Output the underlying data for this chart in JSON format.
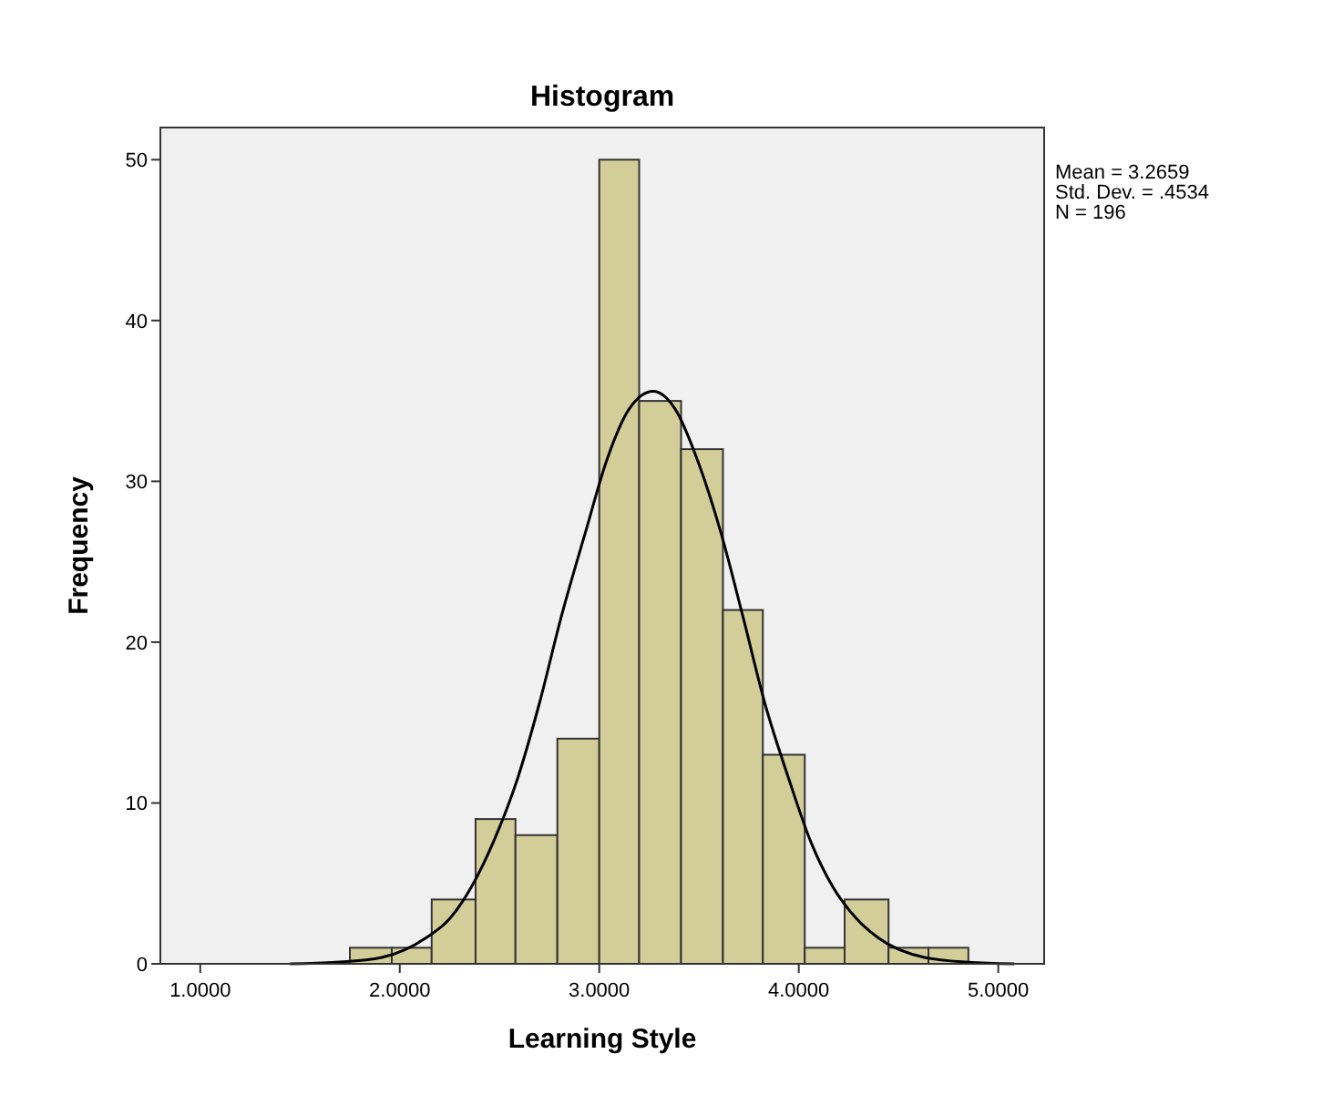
{
  "chart_data": {
    "type": "histogram",
    "title": "Histogram",
    "xlabel": "Learning Style",
    "ylabel": "Frequency",
    "annotations": [
      "Mean = 3.2659",
      "Std. Dev. = .4534",
      "N = 196"
    ],
    "bins": [
      1.75,
      1.96,
      2.16,
      2.38,
      2.58,
      2.79,
      3.0,
      3.2,
      3.41,
      3.62,
      3.82,
      4.03,
      4.23,
      4.45,
      4.65,
      4.85
    ],
    "series": [
      {
        "color": "#d3ce99",
        "values": [
          1,
          1,
          4,
          9,
          8,
          14,
          50,
          35,
          32,
          22,
          13,
          1,
          4,
          1,
          1
        ]
      },
      {
        "type": "line",
        "color": "#000000",
        "x": [
          1.45,
          1.68,
          1.91,
          2.13,
          2.25,
          2.36,
          2.47,
          2.59,
          2.7,
          2.81,
          2.93,
          3.04,
          3.15,
          3.27,
          3.38,
          3.49,
          3.61,
          3.72,
          3.83,
          3.95,
          4.06,
          4.17,
          4.29,
          4.4,
          4.63,
          4.85,
          5.08
        ],
        "values": [
          0,
          0.1,
          0.4,
          1.6,
          2.8,
          4.8,
          7.6,
          11.5,
          16.2,
          21.6,
          26.8,
          31.4,
          34.5,
          35.6,
          34.5,
          31.4,
          26.8,
          21.6,
          16.2,
          11.5,
          7.6,
          4.8,
          2.8,
          1.6,
          0.4,
          0.1,
          0
        ]
      }
    ],
    "xlim": [
      0.8,
      5.23
    ],
    "ylim": [
      0,
      52
    ],
    "xticks": [
      {
        "value": 1,
        "label": "1.0000"
      },
      {
        "value": 2,
        "label": "2.0000"
      },
      {
        "value": 3,
        "label": "3.0000"
      },
      {
        "value": 4,
        "label": "4.0000"
      },
      {
        "value": 5,
        "label": "5.0000"
      }
    ],
    "yticks": [
      0,
      10,
      20,
      30,
      40,
      50
    ],
    "grid": false
  }
}
